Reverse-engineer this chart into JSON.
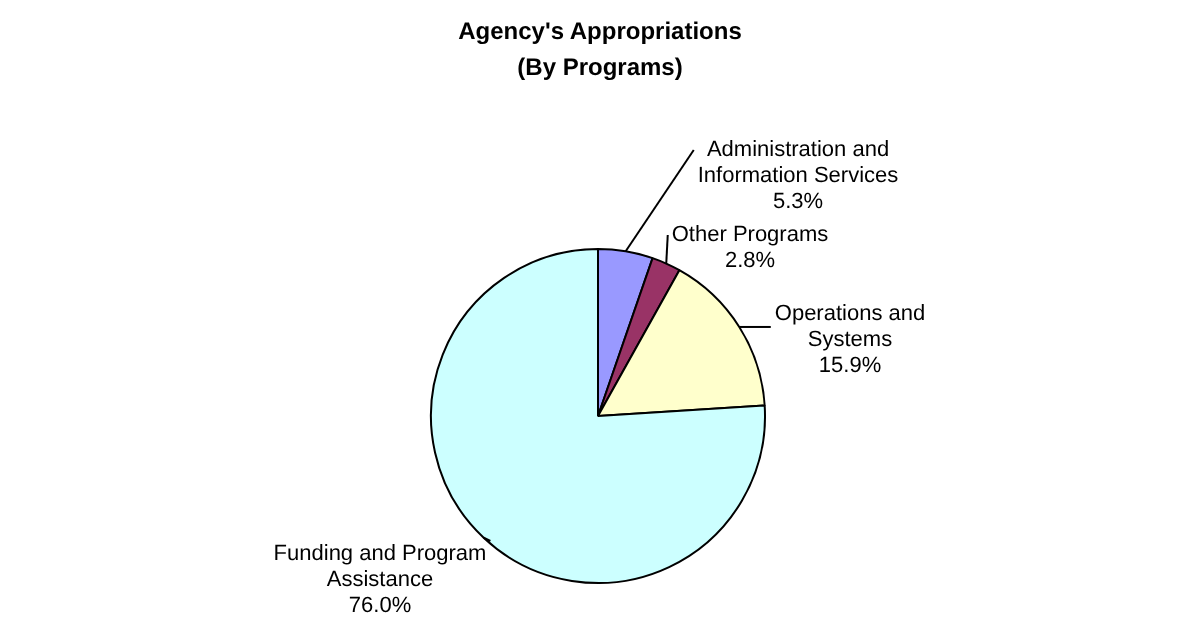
{
  "chart_data": {
    "type": "pie",
    "title": "Agency's Appropriations",
    "subtitle": "(By Programs)",
    "categories": [
      "Administration and\nInformation Services",
      "Other Programs",
      "Operations and\nSystems",
      "Funding and Program\nAssistance"
    ],
    "values": [
      5.3,
      2.8,
      15.9,
      76.0
    ],
    "colors": [
      "#9999ff",
      "#993366",
      "#ffffcc",
      "#ccffff"
    ],
    "value_labels": [
      "5.3%",
      "2.8%",
      "15.9%",
      "76.0%"
    ],
    "legend": false
  }
}
